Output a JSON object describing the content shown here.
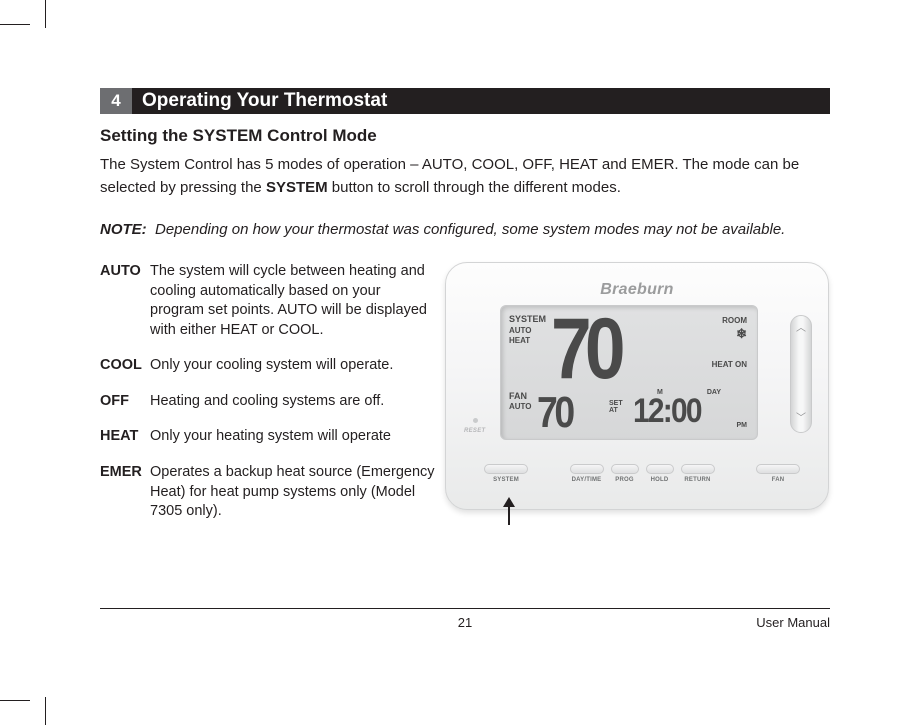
{
  "section": {
    "number": "4",
    "title": "Operating Your Thermostat"
  },
  "subhead": "Setting the SYSTEM Control Mode",
  "intro_a": "The System Control has 5 modes of operation – AUTO, COOL, OFF, HEAT and EMER. The mode can be selected by pressing the ",
  "intro_bold": "SYSTEM",
  "intro_b": " button to scroll through the different modes.",
  "note_label": "NOTE:",
  "note_text": "Depending on how your thermostat was configured, some system modes may not be available.",
  "modes": {
    "auto": {
      "label": "AUTO",
      "desc": "The system will cycle between heating and cooling automatically based on your program set points. AUTO will be displayed with either HEAT or COOL."
    },
    "cool": {
      "label": "COOL",
      "desc": "Only your cooling system will operate."
    },
    "off": {
      "label": "OFF",
      "desc": "Heating and cooling systems are off."
    },
    "heat": {
      "label": "HEAT",
      "desc": "Only your heating system will operate"
    },
    "emer": {
      "label": "EMER",
      "desc": "Operates a backup heat source (Emergency Heat) for heat pump systems only (Model 7305 only)."
    }
  },
  "device": {
    "brand": "Braeburn",
    "reset": "RESET",
    "lcd": {
      "system": "SYSTEM",
      "auto": "AUTO",
      "heat": "HEAT",
      "fan": "FAN",
      "fan_mode": "AUTO",
      "room": "ROOM",
      "heat_on": "HEAT ON",
      "big_temp": "70",
      "small_temp": "70",
      "setat1": "SET",
      "setat2": "AT",
      "clock": "12:00",
      "m": "M",
      "day": "DAY",
      "pm": "PM",
      "snow": "❄"
    },
    "buttons": {
      "system": "SYSTEM",
      "daytime": "DAY/TIME",
      "prog": "PROG",
      "hold": "HOLD",
      "return": "RETURN",
      "fan": "FAN"
    },
    "rocker": {
      "up": "︿",
      "down": "﹀"
    }
  },
  "footer": {
    "page": "21",
    "manual": "User Manual"
  }
}
